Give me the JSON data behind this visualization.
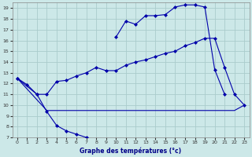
{
  "xlabel": "Graphe des températures (°c)",
  "background_color": "#cce8e8",
  "grid_color": "#aacccc",
  "line_color": "#0000aa",
  "xlim": [
    -0.5,
    23.5
  ],
  "ylim": [
    7,
    19.5
  ],
  "xticks": [
    0,
    1,
    2,
    3,
    4,
    5,
    6,
    7,
    8,
    9,
    10,
    11,
    12,
    13,
    14,
    15,
    16,
    17,
    18,
    19,
    20,
    21,
    22,
    23
  ],
  "yticks": [
    7,
    8,
    9,
    10,
    11,
    12,
    13,
    14,
    15,
    16,
    17,
    18,
    19
  ],
  "line1_x": [
    0,
    1,
    2,
    3,
    4,
    5,
    6,
    7,
    8,
    9,
    10,
    11,
    12,
    13,
    14,
    15,
    16,
    17,
    18,
    19,
    20,
    21,
    22,
    23
  ],
  "line1_y": [
    12.5,
    11.9,
    11.0,
    9.4,
    8.1,
    7.6,
    7.3,
    7.0,
    null,
    null,
    16.3,
    17.8,
    17.5,
    18.3,
    18.3,
    18.4,
    19.1,
    19.3,
    19.3,
    19.1,
    13.3,
    11.0,
    null,
    null
  ],
  "line2_x": [
    0,
    2,
    3,
    4,
    5,
    6,
    7,
    8,
    9,
    10,
    11,
    12,
    13,
    14,
    15,
    16,
    17,
    18,
    19,
    20,
    21,
    22,
    23
  ],
  "line2_y": [
    12.5,
    11.0,
    11.0,
    12.2,
    12.3,
    12.7,
    13.0,
    13.5,
    13.2,
    13.2,
    13.7,
    14.0,
    14.2,
    14.5,
    14.8,
    15.0,
    15.5,
    15.8,
    16.2,
    16.2,
    13.5,
    11.0,
    10.0
  ],
  "line3_x": [
    0,
    3,
    9,
    10,
    11,
    12,
    13,
    14,
    15,
    16,
    17,
    18,
    19,
    20,
    21,
    22,
    23
  ],
  "line3_y": [
    12.5,
    9.5,
    9.5,
    9.5,
    9.5,
    9.5,
    9.5,
    9.5,
    9.5,
    9.5,
    9.5,
    9.5,
    9.5,
    9.5,
    9.5,
    9.5,
    10.0
  ]
}
